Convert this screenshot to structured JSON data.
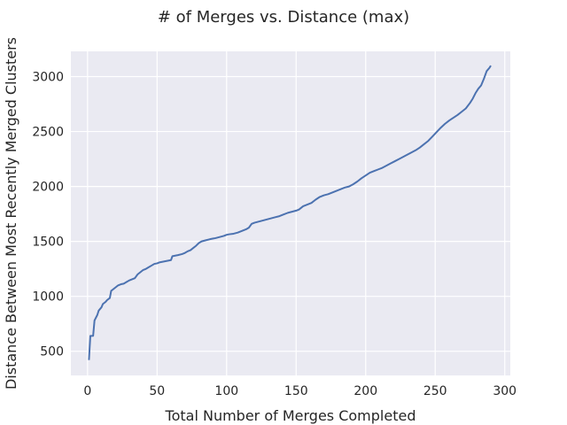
{
  "chart_data": {
    "type": "line",
    "title": "# of Merges vs. Distance (max)",
    "xlabel": "Total Number of Merges Completed",
    "ylabel": "Distance Between Most Recently Merged Clusters",
    "xlim": [
      -12,
      304
    ],
    "ylim": [
      280,
      3230
    ],
    "xticks": [
      0,
      50,
      100,
      150,
      200,
      250,
      300
    ],
    "yticks": [
      500,
      1000,
      1500,
      2000,
      2500,
      3000
    ],
    "grid": true,
    "legend": "none",
    "colors": {
      "background": "#eaeaf2",
      "grid": "#ffffff",
      "line": "#4c72b0"
    },
    "series": [
      {
        "x": [
          1,
          2,
          4,
          5,
          7,
          8,
          10,
          11,
          13,
          14,
          16,
          17,
          18,
          20,
          22,
          24,
          26,
          28,
          30,
          32,
          34,
          36,
          38,
          40,
          42,
          44,
          46,
          48,
          50,
          52,
          54,
          56,
          58,
          60,
          61,
          63,
          65,
          68,
          70,
          72,
          74,
          76,
          78,
          80,
          82,
          85,
          88,
          90,
          92,
          95,
          98,
          100,
          102,
          105,
          108,
          110,
          112,
          114,
          116,
          118,
          120,
          123,
          126,
          129,
          132,
          135,
          138,
          141,
          144,
          147,
          150,
          152,
          155,
          158,
          161,
          164,
          167,
          170,
          173,
          176,
          179,
          182,
          185,
          188,
          191,
          194,
          197,
          200,
          203,
          206,
          209,
          212,
          215,
          218,
          221,
          224,
          227,
          230,
          233,
          236,
          239,
          242,
          245,
          248,
          251,
          254,
          257,
          260,
          263,
          266,
          269,
          272,
          275,
          277,
          279,
          281,
          283,
          285,
          287,
          289,
          290
        ],
        "y": [
          420,
          640,
          640,
          780,
          830,
          870,
          900,
          930,
          950,
          965,
          985,
          1050,
          1060,
          1080,
          1100,
          1110,
          1115,
          1130,
          1145,
          1155,
          1165,
          1200,
          1220,
          1240,
          1250,
          1265,
          1280,
          1295,
          1300,
          1310,
          1315,
          1320,
          1325,
          1330,
          1365,
          1370,
          1375,
          1385,
          1395,
          1410,
          1420,
          1440,
          1460,
          1485,
          1500,
          1510,
          1520,
          1525,
          1530,
          1540,
          1550,
          1560,
          1565,
          1570,
          1580,
          1590,
          1600,
          1610,
          1625,
          1660,
          1670,
          1680,
          1690,
          1700,
          1710,
          1720,
          1730,
          1745,
          1760,
          1770,
          1780,
          1790,
          1820,
          1835,
          1850,
          1880,
          1905,
          1920,
          1930,
          1945,
          1960,
          1975,
          1990,
          2000,
          2020,
          2045,
          2075,
          2100,
          2125,
          2140,
          2155,
          2170,
          2190,
          2210,
          2230,
          2250,
          2270,
          2290,
          2310,
          2330,
          2355,
          2385,
          2415,
          2455,
          2495,
          2535,
          2570,
          2600,
          2625,
          2650,
          2680,
          2710,
          2760,
          2800,
          2850,
          2890,
          2920,
          2980,
          3050,
          3080,
          3100
        ]
      }
    ]
  }
}
